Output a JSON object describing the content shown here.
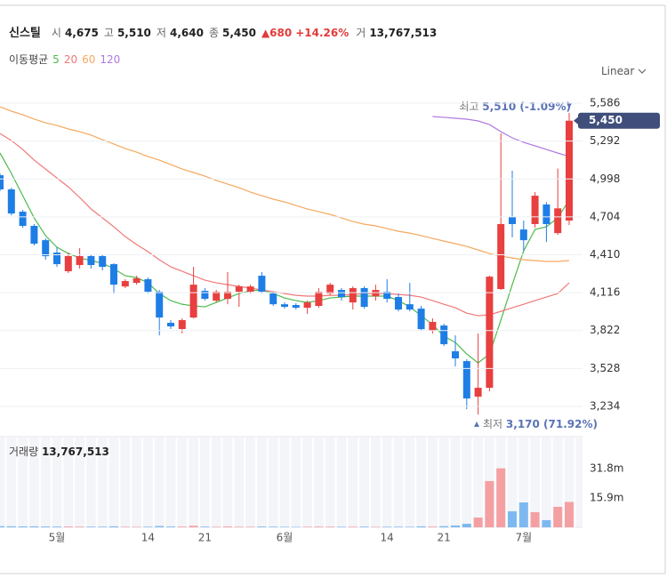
{
  "header": {
    "name": "신스틸",
    "stats": [
      {
        "label": "시",
        "value": "4,675"
      },
      {
        "label": "고",
        "value": "5,510"
      },
      {
        "label": "저",
        "value": "4,640"
      },
      {
        "label": "종",
        "value": "5,450"
      }
    ],
    "change": "▲680",
    "change_pct": "+14.26%",
    "volume_label": "거",
    "volume": "13,767,513"
  },
  "ma_legend": "이동평균",
  "scale_button": "Linear",
  "chart_data": [
    {
      "type": "candlestick",
      "categories": [
        null,
        null,
        null,
        null,
        null,
        "5월",
        null,
        null,
        null,
        null,
        null,
        null,
        null,
        "14",
        null,
        null,
        null,
        null,
        "21",
        null,
        null,
        null,
        null,
        null,
        null,
        "6월",
        null,
        null,
        null,
        null,
        null,
        null,
        null,
        null,
        "14",
        null,
        null,
        null,
        null,
        "21",
        null,
        null,
        null,
        null,
        null,
        null,
        "7월",
        null,
        null,
        null,
        null
      ],
      "open": [
        5027,
        4917,
        4744,
        4634,
        4523,
        4427,
        4282,
        4330,
        4400,
        4400,
        4337,
        4164,
        4192,
        4220,
        4123,
        3882,
        3834,
        3923,
        4130,
        4054,
        4068,
        4123,
        4123,
        4247,
        4109,
        4026,
        4020,
        3999,
        4013,
        4109,
        4137,
        4040,
        4151,
        4088,
        4123,
        4082,
        4026,
        3992,
        3820,
        3861,
        3661,
        3585,
        3309,
        3378,
        4144,
        4704,
        4606,
        4648,
        4800,
        4578,
        4675
      ],
      "high": [
        5041,
        4930,
        4758,
        4648,
        4537,
        4468,
        4427,
        4461,
        4413,
        4413,
        4344,
        4220,
        4247,
        4233,
        4137,
        3903,
        3917,
        4316,
        4151,
        4137,
        4275,
        4178,
        4178,
        4275,
        4123,
        4040,
        4034,
        4054,
        4151,
        4192,
        4151,
        4165,
        4165,
        4178,
        4220,
        4109,
        4192,
        4013,
        3917,
        3875,
        3785,
        3599,
        3799,
        4247,
        5352,
        5062,
        4675,
        4896,
        4818,
        5079,
        5510
      ],
      "low": [
        4903,
        4716,
        4620,
        4482,
        4372,
        4316,
        4268,
        4303,
        4303,
        4289,
        4109,
        4151,
        4178,
        4109,
        3785,
        3834,
        3800,
        3916,
        4054,
        4040,
        4026,
        4006,
        4109,
        4109,
        4013,
        3992,
        3985,
        3951,
        3999,
        4095,
        4054,
        3985,
        3992,
        4054,
        4040,
        3971,
        3971,
        3820,
        3799,
        3702,
        3544,
        3212,
        3170,
        3350,
        4137,
        4544,
        4440,
        4620,
        4509,
        4564,
        4640
      ],
      "close": [
        4917,
        4730,
        4634,
        4496,
        4399,
        4337,
        4400,
        4400,
        4330,
        4316,
        4178,
        4206,
        4227,
        4123,
        3923,
        3854,
        3903,
        4178,
        4068,
        4123,
        4123,
        4164,
        4164,
        4123,
        4026,
        4006,
        3999,
        4040,
        4123,
        4178,
        4082,
        4151,
        4006,
        4137,
        4068,
        3985,
        3985,
        3833,
        3889,
        3716,
        3606,
        3295,
        3378,
        4240,
        4648,
        4648,
        4523,
        4868,
        4648,
        4770,
        5450
      ],
      "up_color": "#e83f3f",
      "down_color": "#1e7ee6",
      "series": [
        {
          "name": "5",
          "color": "#4cbb4c",
          "values": [
            5200,
            5041,
            4868,
            4696,
            4558,
            4468,
            4420,
            4385,
            4365,
            4344,
            4302,
            4247,
            4233,
            4192,
            4109,
            4054,
            4026,
            4013,
            4006,
            4040,
            4075,
            4109,
            4130,
            4137,
            4109,
            4075,
            4054,
            4040,
            4054,
            4075,
            4082,
            4089,
            4089,
            4089,
            4089,
            4054,
            4006,
            3937,
            3868,
            3778,
            3730,
            3640,
            3571,
            3640,
            3902,
            4178,
            4440,
            4606,
            4627,
            4696,
            4834
          ]
        },
        {
          "name": "20",
          "color": "#f07878",
          "values": [
            5351,
            5296,
            5227,
            5144,
            5075,
            5006,
            4937,
            4854,
            4765,
            4696,
            4627,
            4551,
            4489,
            4434,
            4371,
            4316,
            4282,
            4247,
            4213,
            4192,
            4178,
            4164,
            4151,
            4137,
            4123,
            4109,
            4095,
            4089,
            4089,
            4095,
            4095,
            4102,
            4109,
            4109,
            4109,
            4102,
            4095,
            4082,
            4054,
            4026,
            3999,
            3957,
            3937,
            3944,
            3971,
            3999,
            4026,
            4054,
            4082,
            4109,
            4192
          ]
        },
        {
          "name": "60",
          "color": "#f5a85e",
          "values": [
            5558,
            5524,
            5496,
            5462,
            5434,
            5413,
            5386,
            5365,
            5338,
            5303,
            5269,
            5234,
            5206,
            5172,
            5144,
            5110,
            5075,
            5048,
            5020,
            4986,
            4958,
            4930,
            4896,
            4868,
            4841,
            4820,
            4792,
            4765,
            4744,
            4723,
            4696,
            4668,
            4647,
            4634,
            4613,
            4592,
            4578,
            4558,
            4537,
            4516,
            4496,
            4475,
            4447,
            4420,
            4399,
            4385,
            4371,
            4365,
            4358,
            4358,
            4365
          ]
        },
        {
          "name": "120",
          "color": "#b07ae0",
          "values": [
            null,
            null,
            null,
            null,
            null,
            null,
            null,
            null,
            null,
            null,
            null,
            null,
            null,
            null,
            null,
            null,
            null,
            null,
            null,
            null,
            null,
            null,
            null,
            null,
            null,
            null,
            null,
            null,
            null,
            null,
            null,
            null,
            null,
            null,
            null,
            null,
            null,
            null,
            5482,
            5476,
            5469,
            5462,
            5448,
            5420,
            5365,
            5317,
            5282,
            5255,
            5227,
            5199,
            5172
          ]
        }
      ],
      "ylim": [
        3006,
        5731
      ],
      "yticks": [
        {
          "value": 5586,
          "label": "5,586"
        },
        {
          "value": 5292,
          "label": "5,292"
        },
        {
          "value": 4998,
          "label": "4,998"
        },
        {
          "value": 4704,
          "label": "4,704"
        },
        {
          "value": 4410,
          "label": "4,410"
        },
        {
          "value": 4116,
          "label": "4,116"
        },
        {
          "value": 3822,
          "label": "3,822"
        },
        {
          "value": 3528,
          "label": "3,528"
        },
        {
          "value": 3234,
          "label": "3,234"
        }
      ],
      "grid": true,
      "price_label": "5,450",
      "high_note": {
        "label": "최고",
        "text": "5,510 (-1.09%)"
      },
      "low_note": {
        "label": "최저",
        "text": "3,170 (71.92%)"
      }
    },
    {
      "type": "bar",
      "title": "거래량",
      "subtitle": "13,767,513",
      "values": [
        620000,
        540000,
        480000,
        510000,
        450000,
        400000,
        430000,
        380000,
        350000,
        330000,
        520000,
        300000,
        280000,
        310000,
        690000,
        420000,
        380000,
        820000,
        360000,
        300000,
        450000,
        330000,
        290000,
        410000,
        340000,
        260000,
        240000,
        300000,
        380000,
        350000,
        280000,
        330000,
        360000,
        270000,
        310000,
        320000,
        290000,
        520000,
        380000,
        610000,
        980000,
        1900000,
        5300000,
        25100000,
        32000000,
        8700000,
        13500000,
        8200000,
        3900000,
        11100000,
        13767513
      ],
      "up_color": "#f4a0a3",
      "down_color": "#7db9f0",
      "ylim": [
        0,
        48700000
      ],
      "yticks": [
        {
          "value": 31800000,
          "label": "31.8m"
        },
        {
          "value": 15900000,
          "label": "15.9m"
        }
      ]
    }
  ]
}
